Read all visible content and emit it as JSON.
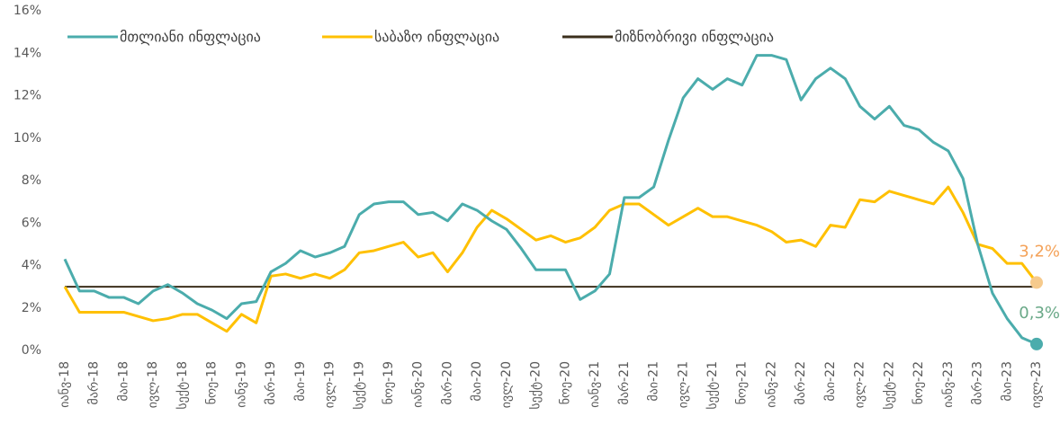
{
  "chart_data": {
    "type": "line",
    "categories": [
      "იანვ-18",
      null,
      "მარ-18",
      null,
      "მაი-18",
      null,
      "ივლ-18",
      null,
      "სექტ-18",
      null,
      "ნოე-18",
      null,
      "იანვ-19",
      null,
      "მარ-19",
      null,
      "მაი-19",
      null,
      "ივლ-19",
      null,
      "სექტ-19",
      null,
      "ნოე-19",
      null,
      "იანვ-20",
      null,
      "მარ-20",
      null,
      "მაი-20",
      null,
      "ივლ-20",
      null,
      "სექტ-20",
      null,
      "ნოე-20",
      null,
      "იანვ-21",
      null,
      "მარ-21",
      null,
      "მაი-21",
      null,
      "ივლ-21",
      null,
      "სექტ-21",
      null,
      "ნოე-21",
      null,
      "იანვ-22",
      null,
      "მარ-22",
      null,
      "მაი-22",
      null,
      "ივლ-22",
      null,
      "სექტ-22",
      null,
      "ნოე-22",
      null,
      "იანვ-23",
      null,
      "მარ-23",
      null,
      "მაი-23",
      null,
      "ივლ-23"
    ],
    "series": [
      {
        "name": "მთლიანი ინფლაცია",
        "color": "#4bacac",
        "values": [
          4.3,
          2.8,
          2.8,
          2.5,
          2.5,
          2.2,
          2.8,
          3.1,
          2.7,
          2.2,
          1.9,
          1.5,
          2.2,
          2.3,
          3.7,
          4.1,
          4.7,
          4.4,
          4.6,
          4.9,
          6.4,
          6.9,
          7.0,
          7.0,
          6.4,
          6.5,
          6.1,
          6.9,
          6.6,
          6.1,
          5.7,
          4.8,
          3.8,
          3.8,
          3.8,
          2.4,
          2.8,
          3.6,
          7.2,
          7.2,
          7.7,
          9.9,
          11.9,
          12.8,
          12.3,
          12.8,
          12.5,
          13.9,
          13.9,
          13.7,
          11.8,
          12.8,
          13.3,
          12.8,
          11.5,
          10.9,
          11.5,
          10.6,
          10.4,
          9.8,
          9.4,
          8.1,
          5.0,
          2.7,
          1.5,
          0.6,
          0.3
        ],
        "value_labels": [
          null,
          null,
          null,
          null,
          null,
          null,
          null,
          null,
          null,
          null,
          null,
          null,
          null,
          null,
          null,
          null,
          null,
          null,
          null,
          null,
          null,
          null,
          null,
          null,
          null,
          null,
          null,
          null,
          null,
          null,
          null,
          null,
          null,
          null,
          null,
          null,
          null,
          null,
          null,
          null,
          null,
          null,
          null,
          null,
          null,
          null,
          null,
          null,
          null,
          null,
          null,
          null,
          null,
          null,
          null,
          null,
          null,
          null,
          null,
          null,
          null,
          null,
          null,
          null,
          null,
          null,
          "0,3%"
        ],
        "label_color": "#6aa988"
      },
      {
        "name": "საბაზო ინფლაცია",
        "color": "#ffc000",
        "values": [
          3.0,
          1.8,
          1.8,
          1.8,
          1.8,
          1.6,
          1.4,
          1.5,
          1.7,
          1.7,
          1.3,
          0.9,
          1.7,
          1.3,
          3.5,
          3.6,
          3.4,
          3.6,
          3.4,
          3.8,
          4.6,
          4.7,
          4.9,
          5.1,
          4.4,
          4.6,
          3.7,
          4.6,
          5.8,
          6.6,
          6.2,
          5.7,
          5.2,
          5.4,
          5.1,
          5.3,
          5.8,
          6.6,
          6.9,
          6.9,
          6.4,
          5.9,
          6.3,
          6.7,
          6.3,
          6.3,
          6.1,
          5.9,
          5.6,
          5.1,
          5.2,
          4.9,
          5.9,
          5.8,
          7.1,
          7.0,
          7.5,
          7.3,
          7.1,
          6.9,
          7.7,
          6.5,
          5.0,
          4.8,
          4.1,
          4.1,
          3.2
        ],
        "value_labels": [
          null,
          null,
          null,
          null,
          null,
          null,
          null,
          null,
          null,
          null,
          null,
          null,
          null,
          null,
          null,
          null,
          null,
          null,
          null,
          null,
          null,
          null,
          null,
          null,
          null,
          null,
          null,
          null,
          null,
          null,
          null,
          null,
          null,
          null,
          null,
          null,
          null,
          null,
          null,
          null,
          null,
          null,
          null,
          null,
          null,
          null,
          null,
          null,
          null,
          null,
          null,
          null,
          null,
          null,
          null,
          null,
          null,
          null,
          null,
          null,
          null,
          null,
          null,
          null,
          null,
          null,
          "3,2%"
        ],
        "label_color": "#f4a259",
        "marker_color": "#f6ca8c"
      },
      {
        "name": "მიზნობრივი ინფლაცია",
        "color": "#3b2f1c",
        "values": [
          3,
          3,
          3,
          3,
          3,
          3,
          3,
          3,
          3,
          3,
          3,
          3,
          3,
          3,
          3,
          3,
          3,
          3,
          3,
          3,
          3,
          3,
          3,
          3,
          3,
          3,
          3,
          3,
          3,
          3,
          3,
          3,
          3,
          3,
          3,
          3,
          3,
          3,
          3,
          3,
          3,
          3,
          3,
          3,
          3,
          3,
          3,
          3,
          3,
          3,
          3,
          3,
          3,
          3,
          3,
          3,
          3,
          3,
          3,
          3,
          3,
          3,
          3,
          3,
          3,
          3,
          3
        ]
      }
    ],
    "ylim": [
      0,
      16
    ],
    "yticks": [
      {
        "value": 0,
        "label": "0%"
      },
      {
        "value": 2,
        "label": "2%"
      },
      {
        "value": 4,
        "label": "4%"
      },
      {
        "value": 6,
        "label": "6%"
      },
      {
        "value": 8,
        "label": "8%"
      },
      {
        "value": 10,
        "label": "10%"
      },
      {
        "value": 12,
        "label": "12%"
      },
      {
        "value": 14,
        "label": "14%"
      },
      {
        "value": 16,
        "label": "16%"
      }
    ],
    "grid": false,
    "legend": "top"
  }
}
